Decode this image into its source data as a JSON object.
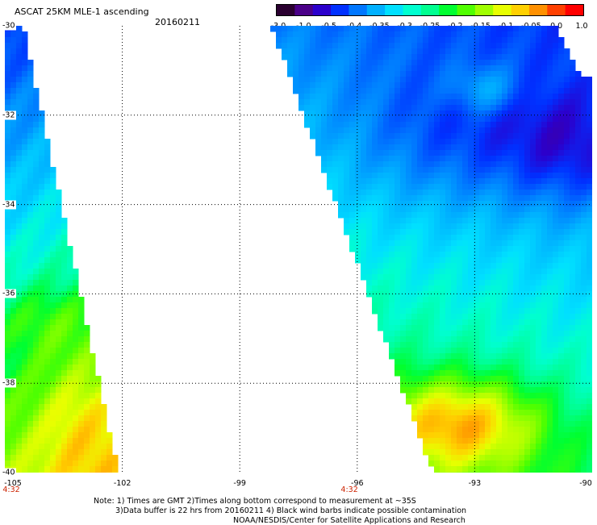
{
  "header": {
    "title": "ASCAT 25KM MLE-1 ascending",
    "date": "20160211"
  },
  "colorbar": {
    "colors": [
      "#2a0030",
      "#4a0088",
      "#2b00cc",
      "#0030ff",
      "#0077ff",
      "#00b0ff",
      "#00e0ff",
      "#00ffd0",
      "#00ff90",
      "#00ff30",
      "#50ff00",
      "#a0ff00",
      "#e8ff00",
      "#ffd000",
      "#ff9000",
      "#ff4000",
      "#ff0000"
    ],
    "ticks": [
      "-3.0",
      "-1.0",
      "-0.5",
      "-0.4",
      "-0.35",
      "-0.3",
      "-0.25",
      "-0.2",
      "-0.15",
      "-0.1",
      "-0.05",
      "0.0",
      "1.0"
    ]
  },
  "map": {
    "lat_labels": [
      "-30",
      "-32",
      "-34",
      "-36",
      "-38",
      "-40"
    ],
    "lon_labels": [
      "-105",
      "-102",
      "-99",
      "-96",
      "-93",
      "-90"
    ],
    "time_labels": [
      {
        "text": "4:32",
        "lon": -105
      },
      {
        "text": "4:32",
        "lon": -96.2
      }
    ]
  },
  "footer": {
    "line1": "Note: 1) Times are GMT 2)Times along bottom correspond to measurement at ~35S",
    "line2": "3)Data buffer is 22 hrs from 20160211 4) Black wind barbs indicate possible contamination",
    "line3": "NOAA/NESDIS/Center for Satellite Applications and Research"
  }
}
